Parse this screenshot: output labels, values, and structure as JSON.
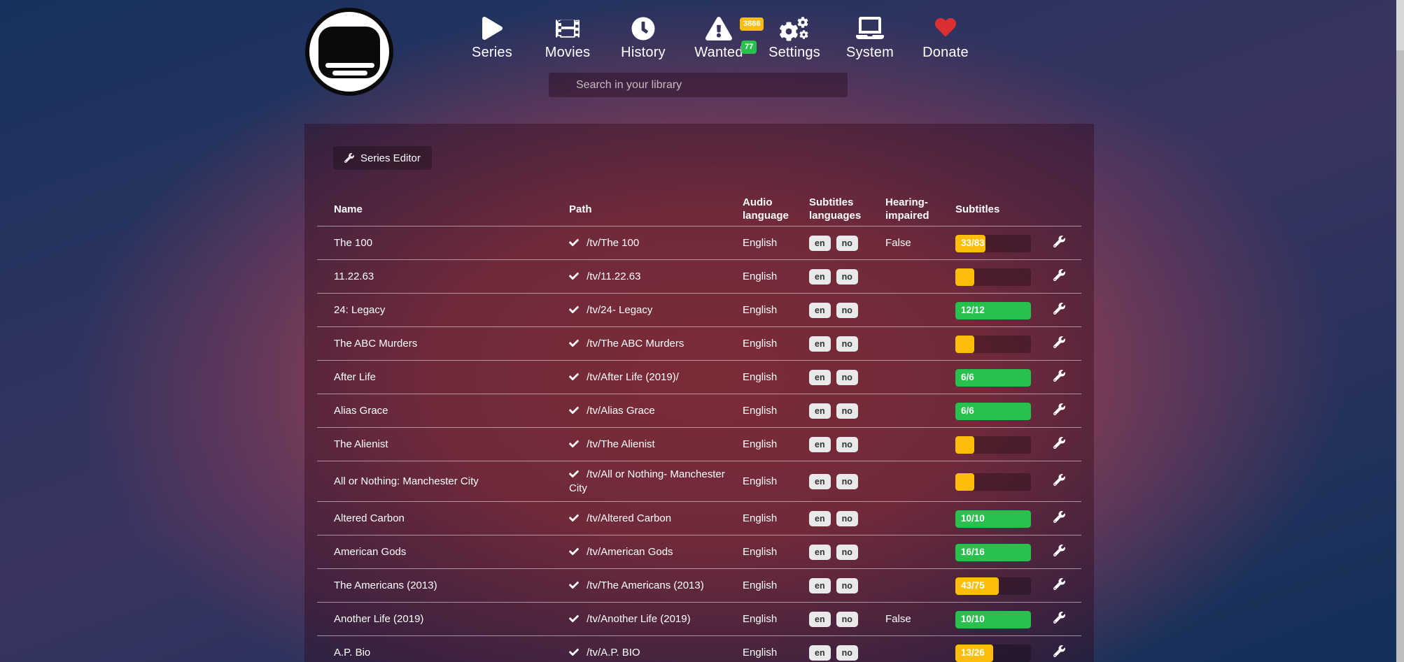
{
  "header": {
    "search": {
      "placeholder": "Search in your library"
    },
    "nav": [
      {
        "id": "series",
        "label": "Series",
        "icon": "play-icon"
      },
      {
        "id": "movies",
        "label": "Movies",
        "icon": "film-icon"
      },
      {
        "id": "history",
        "label": "History",
        "icon": "clock-icon"
      },
      {
        "id": "wanted",
        "label": "Wanted",
        "icon": "warning-triangle-icon",
        "badges": [
          {
            "value": "3866",
            "color": "#fcbe0b"
          },
          {
            "value": "77",
            "color": "#29c14e"
          }
        ]
      },
      {
        "id": "settings",
        "label": "Settings",
        "icon": "gears-icon"
      },
      {
        "id": "system",
        "label": "System",
        "icon": "laptop-icon"
      },
      {
        "id": "donate",
        "label": "Donate",
        "icon": "heart-icon",
        "icon_color": "#dc2f34"
      }
    ]
  },
  "toolbar": {
    "series_editor_label": "Series Editor"
  },
  "table": {
    "headers": {
      "name": "Name",
      "path": "Path",
      "audio": "Audio language",
      "subtitles_languages": "Subtitles languages",
      "hearing": "Hearing-impaired",
      "subtitles": "Subtitles"
    },
    "rows": [
      {
        "name": "The 100",
        "path": "/tv/The 100",
        "audio": "English",
        "languages": [
          "en",
          "no"
        ],
        "hearing_impaired": "False",
        "progress": {
          "label": "33/83",
          "percent": 40,
          "state": "yellow"
        }
      },
      {
        "name": "11.22.63",
        "path": "/tv/11.22.63",
        "audio": "English",
        "languages": [
          "en",
          "no"
        ],
        "hearing_impaired": "",
        "progress": {
          "label": "",
          "percent": 25,
          "state": "yellow"
        }
      },
      {
        "name": "24: Legacy",
        "path": "/tv/24- Legacy",
        "audio": "English",
        "languages": [
          "en",
          "no"
        ],
        "hearing_impaired": "",
        "progress": {
          "label": "12/12",
          "percent": 100,
          "state": "green"
        }
      },
      {
        "name": "The ABC Murders",
        "path": "/tv/The ABC Murders",
        "audio": "English",
        "languages": [
          "en",
          "no"
        ],
        "hearing_impaired": "",
        "progress": {
          "label": "",
          "percent": 25,
          "state": "yellow"
        }
      },
      {
        "name": "After Life",
        "path": "/tv/After Life (2019)/",
        "audio": "English",
        "languages": [
          "en",
          "no"
        ],
        "hearing_impaired": "",
        "progress": {
          "label": "6/6",
          "percent": 100,
          "state": "green"
        }
      },
      {
        "name": "Alias Grace",
        "path": "/tv/Alias Grace",
        "audio": "English",
        "languages": [
          "en",
          "no"
        ],
        "hearing_impaired": "",
        "progress": {
          "label": "6/6",
          "percent": 100,
          "state": "green"
        }
      },
      {
        "name": "The Alienist",
        "path": "/tv/The Alienist",
        "audio": "English",
        "languages": [
          "en",
          "no"
        ],
        "hearing_impaired": "",
        "progress": {
          "label": "",
          "percent": 25,
          "state": "yellow"
        }
      },
      {
        "name": "All or Nothing: Manchester City",
        "path": "/tv/All or Nothing- Manchester City",
        "audio": "English",
        "languages": [
          "en",
          "no"
        ],
        "hearing_impaired": "",
        "progress": {
          "label": "",
          "percent": 25,
          "state": "yellow"
        }
      },
      {
        "name": "Altered Carbon",
        "path": "/tv/Altered Carbon",
        "audio": "English",
        "languages": [
          "en",
          "no"
        ],
        "hearing_impaired": "",
        "progress": {
          "label": "10/10",
          "percent": 100,
          "state": "green"
        }
      },
      {
        "name": "American Gods",
        "path": "/tv/American Gods",
        "audio": "English",
        "languages": [
          "en",
          "no"
        ],
        "hearing_impaired": "",
        "progress": {
          "label": "16/16",
          "percent": 100,
          "state": "green"
        }
      },
      {
        "name": "The Americans (2013)",
        "path": "/tv/The Americans (2013)",
        "audio": "English",
        "languages": [
          "en",
          "no"
        ],
        "hearing_impaired": "",
        "progress": {
          "label": "43/75",
          "percent": 57,
          "state": "yellow"
        }
      },
      {
        "name": "Another Life (2019)",
        "path": "/tv/Another Life (2019)",
        "audio": "English",
        "languages": [
          "en",
          "no"
        ],
        "hearing_impaired": "False",
        "progress": {
          "label": "10/10",
          "percent": 100,
          "state": "green"
        }
      },
      {
        "name": "A.P. Bio",
        "path": "/tv/A.P. BIO",
        "audio": "English",
        "languages": [
          "en",
          "no"
        ],
        "hearing_impaired": "",
        "progress": {
          "label": "13/26",
          "percent": 50,
          "state": "yellow"
        }
      }
    ]
  },
  "colors": {
    "yellow": "#fcbe0b",
    "green": "#29c14e",
    "heart_red": "#dc2f34",
    "badge_bg": "#e9e9e9"
  }
}
